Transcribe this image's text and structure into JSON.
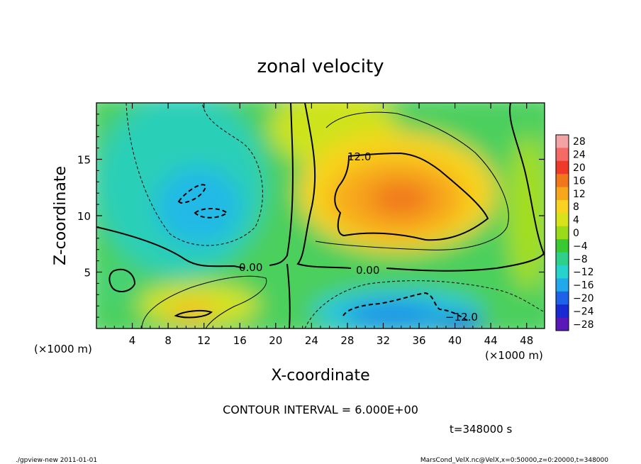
{
  "chart_data": {
    "type": "heatmap",
    "title": "zonal velocity",
    "xlabel": "X-coordinate",
    "ylabel": "Z-coordinate",
    "x_unit_left": "(×1000 m)",
    "x_unit_right": "(×1000 m)",
    "y_unit": "(×1000 m)",
    "xlim": [
      0,
      50
    ],
    "ylim": [
      0,
      20
    ],
    "x_ticks": [
      4,
      8,
      12,
      16,
      20,
      24,
      28,
      32,
      36,
      40,
      44,
      48
    ],
    "y_ticks": [
      5,
      10,
      15
    ],
    "colorbar": {
      "levels": [
        28,
        24,
        20,
        16,
        12,
        8,
        4,
        0,
        -4,
        -8,
        -12,
        -16,
        -20,
        -24,
        -28
      ],
      "labels": [
        "28",
        "24",
        "20",
        "16",
        "12",
        "8",
        "4",
        "0",
        "−4",
        "−8",
        "−12",
        "−16",
        "−20",
        "−24",
        "−28"
      ],
      "colors": [
        "#f3a3a3",
        "#f56a64",
        "#ee3a26",
        "#f0781a",
        "#f7a71c",
        "#f8d31f",
        "#d8e41b",
        "#9adc1c",
        "#39c932",
        "#2ed08a",
        "#27d4cc",
        "#22a9ec",
        "#1d62e8",
        "#1a2ad2",
        "#5a18b8"
      ]
    },
    "contour_interval": "CONTOUR INTERVAL = 6.000E+00",
    "contour_labels": [
      "12.0",
      "0.00",
      "0.00",
      "−12.0"
    ],
    "features": [
      {
        "x": 33,
        "z": 11.5,
        "value": 18
      },
      {
        "x": 11,
        "z": 11,
        "value": -10
      },
      {
        "x": 33,
        "z": 1.5,
        "value": -16
      },
      {
        "x": 12,
        "z": 2,
        "value": 10
      }
    ]
  },
  "time_label": "t=348000 s",
  "footer": {
    "left": "./gpview-new  2011-01-01",
    "right": "MarsCond_VelX.nc@VelX,x=0:50000,z=0:20000,t=348000"
  }
}
